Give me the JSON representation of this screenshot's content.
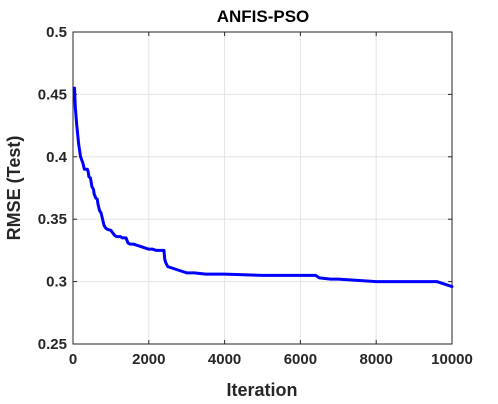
{
  "chart_data": {
    "type": "line",
    "title": "ANFIS-PSO",
    "xlabel": "Iteration",
    "ylabel": "RMSE (Test)",
    "xlim": [
      0,
      10000
    ],
    "ylim": [
      0.25,
      0.5
    ],
    "xticks": [
      0,
      2000,
      4000,
      6000,
      8000,
      10000
    ],
    "yticks": [
      0.25,
      0.3,
      0.35,
      0.4,
      0.45,
      0.5
    ],
    "xtick_labels": [
      "0",
      "2000",
      "4000",
      "6000",
      "8000",
      "10000"
    ],
    "ytick_labels": [
      "0.25",
      "0.3",
      "0.35",
      "0.4",
      "0.45",
      "0.5"
    ],
    "grid": true,
    "series_color": "#0000ff",
    "series": [
      {
        "x": [
          30,
          40,
          60,
          100,
          150,
          200,
          260,
          300,
          340,
          380,
          400,
          420,
          460,
          500,
          540,
          560,
          600,
          640,
          660,
          700,
          740,
          780,
          820,
          860,
          900,
          1000,
          1100,
          1150,
          1250,
          1300,
          1400,
          1450,
          1500,
          1600,
          1800,
          1900,
          2000,
          2100,
          2200,
          2300,
          2400,
          2420,
          2450,
          2500,
          2600,
          2700,
          2800,
          2900,
          3000,
          3200,
          3500,
          4000,
          5000,
          6000,
          6400,
          6500,
          6800,
          7000,
          7500,
          8000,
          9000,
          9500,
          9600,
          9700,
          9800,
          9900,
          10000
        ],
        "y": [
          0.455,
          0.455,
          0.44,
          0.425,
          0.41,
          0.4,
          0.395,
          0.39,
          0.39,
          0.39,
          0.388,
          0.384,
          0.383,
          0.376,
          0.374,
          0.37,
          0.367,
          0.366,
          0.362,
          0.357,
          0.355,
          0.35,
          0.345,
          0.343,
          0.342,
          0.341,
          0.337,
          0.336,
          0.336,
          0.335,
          0.335,
          0.331,
          0.33,
          0.33,
          0.328,
          0.327,
          0.326,
          0.326,
          0.325,
          0.325,
          0.325,
          0.318,
          0.315,
          0.312,
          0.311,
          0.31,
          0.309,
          0.308,
          0.307,
          0.307,
          0.306,
          0.306,
          0.305,
          0.305,
          0.305,
          0.303,
          0.302,
          0.302,
          0.301,
          0.3,
          0.3,
          0.3,
          0.3,
          0.299,
          0.298,
          0.297,
          0.296
        ]
      }
    ]
  }
}
